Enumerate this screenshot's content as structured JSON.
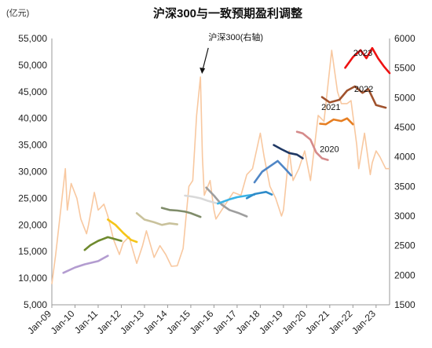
{
  "chart_data": {
    "type": "line",
    "title": "沪深300与一致预期盈利调整",
    "left_axis": {
      "unit_label": "(亿元)",
      "ylim": [
        5000,
        55000
      ],
      "ticks": [
        "5,000",
        "10,000",
        "15,000",
        "20,000",
        "25,000",
        "30,000",
        "35,000",
        "40,000",
        "45,000",
        "50,000",
        "55,000"
      ]
    },
    "right_axis": {
      "ylim": [
        1500,
        6000
      ],
      "ticks": [
        "1500",
        "2000",
        "2500",
        "3000",
        "3500",
        "4000",
        "4500",
        "5000",
        "5500",
        "6000"
      ]
    },
    "x_ticks": [
      "Jan-09",
      "Jan-10",
      "Jan-11",
      "Jan-12",
      "Jan-13",
      "Jan-14",
      "Jan-15",
      "Jan-16",
      "Jan-17",
      "Jan-18",
      "Jan-19",
      "Jan-20",
      "Jan-21",
      "Jan-22",
      "Jan-23"
    ],
    "x_range": [
      "2009-01",
      "2023-08"
    ],
    "index_series": {
      "name": "沪深300(右轴)",
      "color": "#f8c8a0",
      "axis": "right",
      "x": [
        "2009-01",
        "2009-03",
        "2009-08",
        "2009-09",
        "2009-11",
        "2010-02",
        "2010-04",
        "2010-07",
        "2010-08",
        "2010-11",
        "2011-01",
        "2011-04",
        "2011-06",
        "2011-09",
        "2011-12",
        "2012-02",
        "2012-05",
        "2012-09",
        "2012-12",
        "2013-02",
        "2013-06",
        "2013-09",
        "2013-12",
        "2014-03",
        "2014-06",
        "2014-09",
        "2014-12",
        "2015-02",
        "2015-04",
        "2015-06",
        "2015-07",
        "2015-08",
        "2015-11",
        "2016-01",
        "2016-02",
        "2016-06",
        "2016-11",
        "2017-03",
        "2017-06",
        "2017-09",
        "2018-01",
        "2018-03",
        "2018-06",
        "2018-09",
        "2018-12",
        "2019-01",
        "2019-04",
        "2019-06",
        "2019-09",
        "2019-12",
        "2020-03",
        "2020-07",
        "2020-10",
        "2021-02",
        "2021-05",
        "2021-07",
        "2021-10",
        "2021-12",
        "2022-03",
        "2022-04",
        "2022-07",
        "2022-10",
        "2022-11",
        "2023-01",
        "2023-03",
        "2023-06",
        "2023-08"
      ],
      "values": [
        1850,
        2350,
        3800,
        3100,
        3550,
        3300,
        2950,
        2700,
        2850,
        3400,
        3100,
        3200,
        3000,
        2600,
        2350,
        2550,
        2650,
        2200,
        2500,
        2750,
        2300,
        2500,
        2350,
        2150,
        2160,
        2450,
        3500,
        3600,
        4700,
        5350,
        4000,
        3350,
        3600,
        3100,
        2950,
        3150,
        3400,
        3350,
        3700,
        3800,
        4400,
        4000,
        3500,
        3300,
        3000,
        3100,
        4100,
        3600,
        3800,
        4100,
        3600,
        4700,
        4600,
        5800,
        5100,
        4900,
        4900,
        4950,
        4200,
        3800,
        4400,
        3700,
        3900,
        4100,
        4000,
        3800,
        3800
      ]
    },
    "forecast_series": [
      {
        "name": "",
        "color": "#b39cd0",
        "axis": "left",
        "x": [
          "2009-07",
          "2010-01",
          "2010-06",
          "2011-01",
          "2011-06"
        ],
        "values": [
          11000,
          12000,
          12600,
          13200,
          14200
        ]
      },
      {
        "name": "",
        "color": "#6f8a2e",
        "axis": "left",
        "x": [
          "2010-06",
          "2010-09",
          "2011-01",
          "2011-06",
          "2012-01"
        ],
        "values": [
          15300,
          16200,
          17000,
          17700,
          17000
        ]
      },
      {
        "name": "",
        "color": "#f5c518",
        "axis": "left",
        "x": [
          "2011-06",
          "2011-10",
          "2012-02",
          "2012-06",
          "2012-09"
        ],
        "values": [
          21000,
          20000,
          18500,
          17200,
          16800
        ]
      },
      {
        "name": "",
        "color": "#c9c29c",
        "axis": "left",
        "x": [
          "2012-09",
          "2013-01",
          "2013-06",
          "2013-10",
          "2014-02",
          "2014-06"
        ],
        "values": [
          22200,
          21000,
          20500,
          20000,
          20300,
          20100
        ]
      },
      {
        "name": "",
        "color": "#7f8c6a",
        "axis": "left",
        "x": [
          "2013-10",
          "2014-02",
          "2014-06",
          "2014-10",
          "2015-01",
          "2015-06"
        ],
        "values": [
          23200,
          22800,
          22700,
          22500,
          22200,
          21500
        ]
      },
      {
        "name": "",
        "color": "#d9d9d9",
        "axis": "left",
        "x": [
          "2014-10",
          "2015-02",
          "2015-06",
          "2015-10",
          "2016-02",
          "2016-06"
        ],
        "values": [
          25500,
          25300,
          25000,
          24500,
          24100,
          24000
        ]
      },
      {
        "name": "",
        "color": "#9e9e9e",
        "axis": "left",
        "x": [
          "2015-09",
          "2016-01",
          "2016-05",
          "2016-09",
          "2017-02",
          "2017-06"
        ],
        "values": [
          27000,
          25500,
          23800,
          22800,
          22200,
          21600
        ]
      },
      {
        "name": "",
        "color": "#39b3e6",
        "axis": "left",
        "x": [
          "2016-03",
          "2016-09",
          "2017-01",
          "2017-06",
          "2017-10"
        ],
        "values": [
          24000,
          24800,
          25200,
          25500,
          25700
        ]
      },
      {
        "name": "",
        "color": "#2e8bc9",
        "axis": "left",
        "x": [
          "2017-06",
          "2017-10",
          "2018-01",
          "2018-04",
          "2018-07"
        ],
        "values": [
          25000,
          25800,
          26000,
          26200,
          25700
        ]
      },
      {
        "name": "",
        "color": "#4f86c6",
        "axis": "left",
        "x": [
          "2017-10",
          "2018-02",
          "2018-06",
          "2018-10",
          "2019-02",
          "2019-05"
        ],
        "values": [
          28000,
          30000,
          31000,
          32000,
          30500,
          29300
        ]
      },
      {
        "name": "",
        "color": "#1f3864",
        "axis": "left",
        "x": [
          "2018-08",
          "2018-12",
          "2019-04",
          "2019-08",
          "2019-11"
        ],
        "values": [
          35000,
          34200,
          33500,
          33200,
          32500
        ]
      },
      {
        "name": "2020",
        "color": "#d58a8a",
        "axis": "left",
        "x": [
          "2019-08",
          "2019-11",
          "2020-03",
          "2020-06",
          "2020-09",
          "2020-12"
        ],
        "values": [
          37500,
          37200,
          36000,
          33600,
          32500,
          32200
        ]
      },
      {
        "name": "2021",
        "color": "#e67e22",
        "axis": "left",
        "x": [
          "2020-08",
          "2020-11",
          "2021-03",
          "2021-07",
          "2021-10",
          "2022-01"
        ],
        "values": [
          39000,
          38900,
          39800,
          39500,
          40000,
          38900
        ]
      },
      {
        "name": "2022",
        "color": "#a0522d",
        "axis": "left",
        "x": [
          "2020-09",
          "2021-01",
          "2021-06",
          "2021-10",
          "2022-02",
          "2022-06",
          "2022-09",
          "2023-01",
          "2023-06"
        ],
        "values": [
          44000,
          43000,
          43500,
          45200,
          46000,
          44800,
          45500,
          42500,
          42000
        ]
      },
      {
        "name": "2023",
        "color": "#ee1111",
        "axis": "left",
        "x": [
          "2021-09",
          "2022-01",
          "2022-05",
          "2022-08",
          "2022-11",
          "2023-02",
          "2023-05",
          "2023-08"
        ],
        "values": [
          49500,
          51500,
          52800,
          51300,
          53200,
          51300,
          49800,
          48500
        ]
      }
    ],
    "annotations": [
      {
        "text": "沪深300(右轴)",
        "target": "index peak, mid-2015"
      },
      {
        "text": "2023"
      },
      {
        "text": "2022"
      },
      {
        "text": "2021"
      },
      {
        "text": "2020"
      }
    ],
    "grid": false,
    "legend": "none"
  }
}
